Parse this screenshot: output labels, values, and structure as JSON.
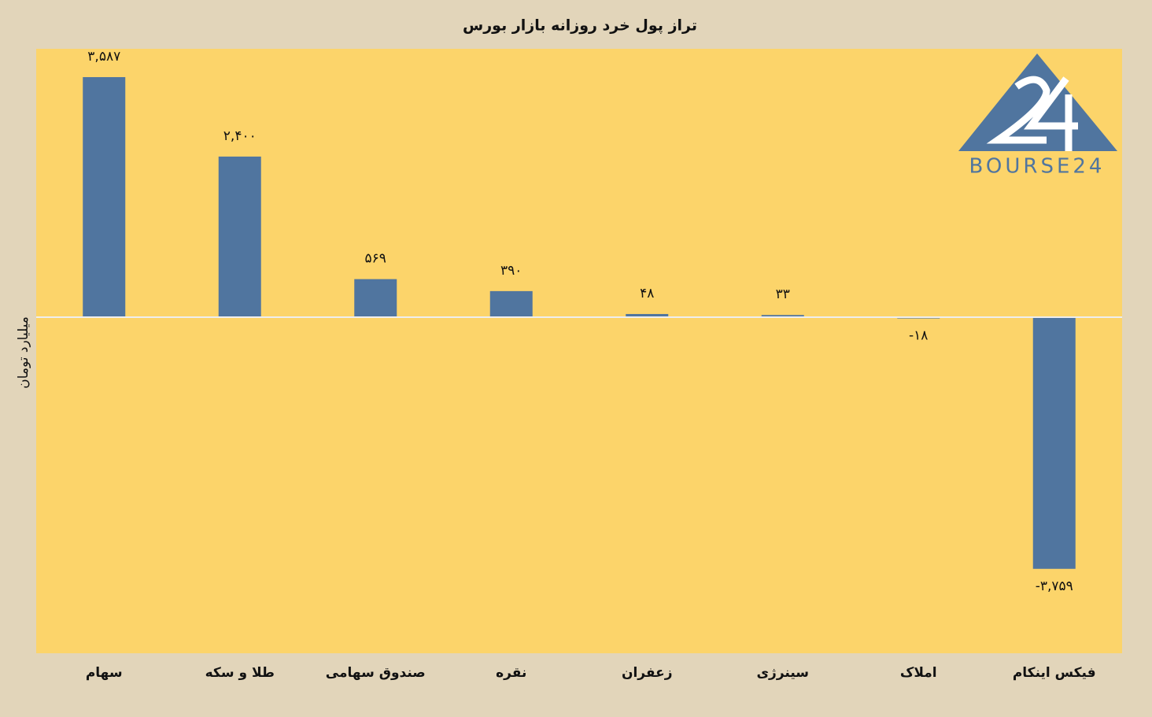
{
  "chart_data": {
    "type": "bar",
    "title": "تراز پول خرد روزانه بازار بورس",
    "y_label": "میلیارد تومان",
    "categories": [
      "سهام",
      "طلا و سکه",
      "صندوق سهامی",
      "نقره",
      "زعفران",
      "سینرژی",
      "املاک",
      "فیکس اینکام"
    ],
    "values": [
      3587,
      2400,
      569,
      390,
      48,
      33,
      -18,
      -3759
    ],
    "value_labels": [
      "۳,۵۸۷",
      "۲,۴۰۰",
      "۵۶۹",
      "۳۹۰",
      "۴۸",
      "۳۳",
      "-۱۸",
      "-۳,۷۵۹"
    ],
    "color": "#50759f",
    "ylim": [
      -5020,
      4010
    ],
    "logo": "BOURSE24"
  }
}
